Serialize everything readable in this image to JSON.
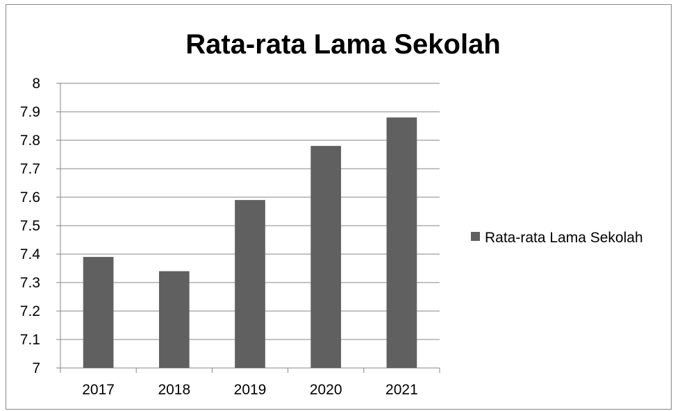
{
  "chart_data": {
    "type": "bar",
    "title": "Rata-rata Lama Sekolah",
    "categories": [
      "2017",
      "2018",
      "2019",
      "2020",
      "2021"
    ],
    "series": [
      {
        "name": "Rata-rata Lama Sekolah",
        "values": [
          7.39,
          7.34,
          7.59,
          7.78,
          7.88
        ],
        "color": "#606060"
      }
    ],
    "ylim": [
      7,
      8
    ],
    "yticks": [
      "7",
      "7.1",
      "7.2",
      "7.3",
      "7.4",
      "7.5",
      "7.6",
      "7.7",
      "7.8",
      "7.9",
      "8"
    ],
    "grid": true,
    "legend_position": "right"
  }
}
